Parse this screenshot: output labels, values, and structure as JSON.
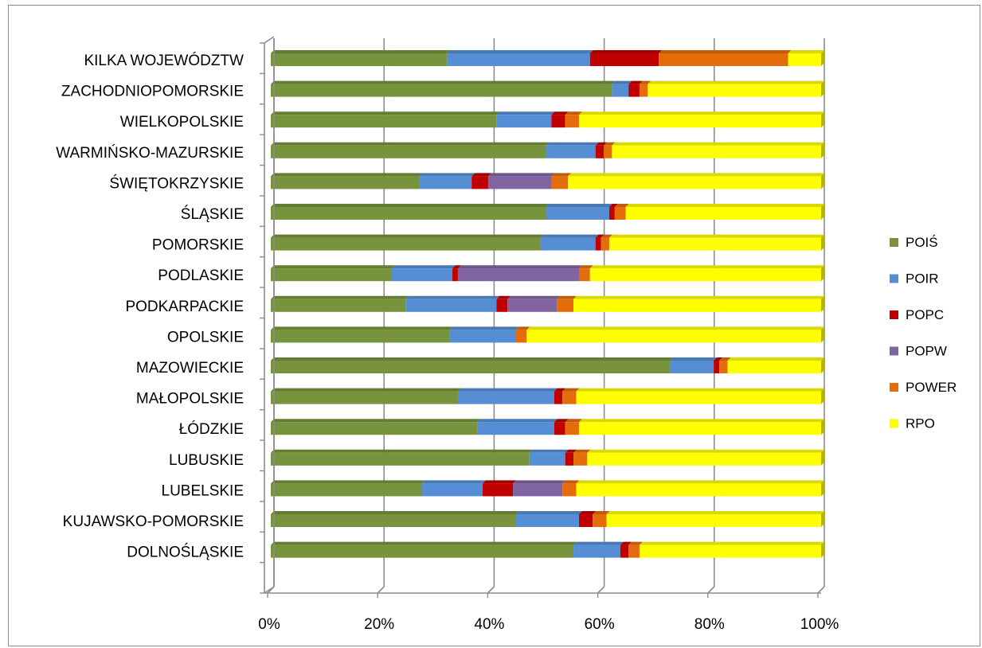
{
  "chart_data": {
    "type": "bar",
    "orientation": "horizontal",
    "stacking": "percent",
    "categories": [
      "KILKA WOJEWÓDZTW",
      "ZACHODNIOPOMORSKIE",
      "WIELKOPOLSKIE",
      "WARMIŃSKO-MAZURSKIE",
      "ŚWIĘTOKRZYSKIE",
      "ŚLĄSKIE",
      "POMORSKIE",
      "PODLASKIE",
      "PODKARPACKIE",
      "OPOLSKIE",
      "MAZOWIECKIE",
      "MAŁOPOLSKIE",
      "ŁÓDZKIE",
      "LUBUSKIE",
      "LUBELSKIE",
      "KUJAWSKO-POMORSKIE",
      "DOLNOŚLĄSKIE"
    ],
    "series": [
      {
        "name": "POIŚ",
        "color": "#77933C",
        "values": [
          32,
          62,
          41,
          50,
          27,
          50,
          49,
          22,
          24.5,
          32.5,
          72.5,
          34,
          37.5,
          47,
          27.5,
          44.5,
          55
        ]
      },
      {
        "name": "POIR",
        "color": "#558ED5",
        "values": [
          26,
          3,
          10,
          9,
          9.5,
          11.5,
          10,
          11,
          16.5,
          12,
          8,
          17.5,
          14,
          6.5,
          11,
          11.5,
          8.5
        ]
      },
      {
        "name": "POPC",
        "color": "#C00000",
        "values": [
          12.5,
          2,
          2.5,
          1.5,
          3,
          1,
          1,
          1,
          2,
          0,
          1,
          1.5,
          2,
          1.5,
          5.5,
          2.5,
          1.5
        ]
      },
      {
        "name": "POPW",
        "color": "#8064A2",
        "values": [
          0,
          0,
          0,
          0,
          11.5,
          0,
          0,
          22,
          9,
          0,
          0,
          0,
          0,
          0,
          9,
          0,
          0
        ]
      },
      {
        "name": "POWER",
        "color": "#E46C0A",
        "values": [
          23.5,
          1.5,
          2.5,
          1.5,
          3,
          2,
          1.5,
          2,
          3,
          2,
          1.5,
          2.5,
          2.5,
          2.5,
          2.5,
          2.5,
          2
        ]
      },
      {
        "name": "RPO",
        "color": "#FFFF00",
        "values": [
          6,
          31.5,
          44,
          38,
          46,
          35.5,
          38.5,
          42,
          45,
          53.5,
          17,
          44.5,
          44,
          42.5,
          44.5,
          39,
          33
        ]
      }
    ],
    "x_ticks": [
      "0%",
      "20%",
      "40%",
      "60%",
      "80%",
      "100%"
    ],
    "xlim": [
      0,
      100
    ],
    "title": "",
    "xlabel": "",
    "ylabel": "",
    "grid": true,
    "legend_position": "right"
  }
}
